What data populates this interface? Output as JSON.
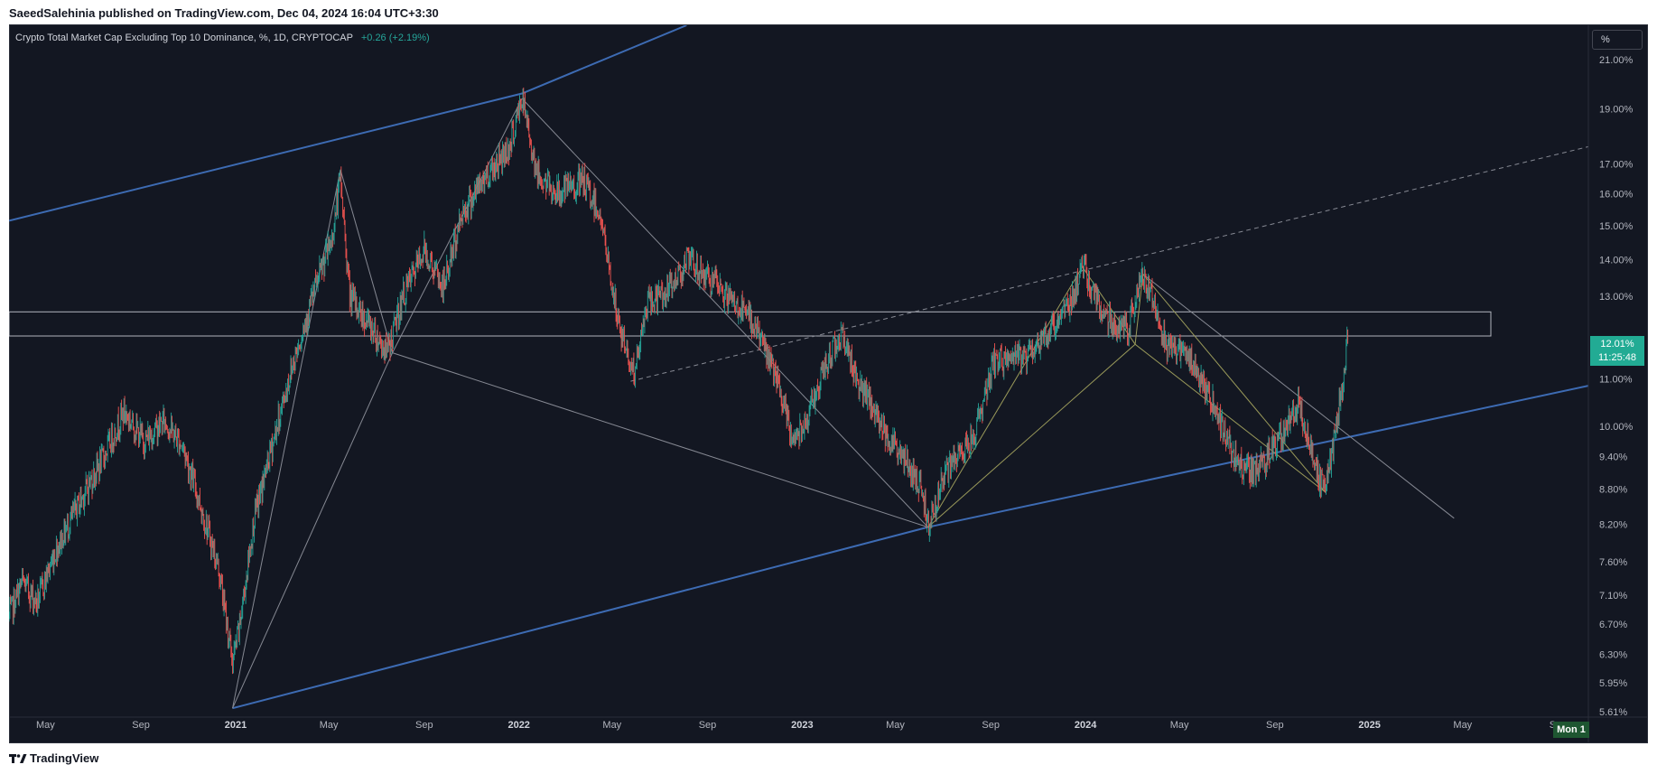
{
  "header": {
    "published": "SaeedSalehinia published on TradingView.com, Dec 04, 2024 16:04 UTC+3:30"
  },
  "legend": {
    "title": "Crypto Total Market Cap Excluding Top 10 Dominance, %, 1D, CRYPTOCAP",
    "change": "+0.26 (+2.19%)"
  },
  "scale_button": "%",
  "price_tag": {
    "value": "12.01%",
    "countdown": "11:25:48"
  },
  "time_tag": "Mon 1",
  "footer": {
    "brand": "TradingView"
  },
  "colors": {
    "background": "#131722",
    "up": "#26a69a",
    "down": "#ef5350",
    "channel": "#3d6bb3",
    "zone": "#b2b5be",
    "pattern": "#9a9a5a",
    "trend": "#868993"
  },
  "chart_data": {
    "type": "candlestick",
    "title": "Crypto Total Market Cap Excluding Top 10 Dominance, %, 1D, CRYPTOCAP",
    "y_scale": "log",
    "ylim": [
      5.55,
      22.5
    ],
    "y_ticks": [
      "21.00%",
      "19.00%",
      "17.00%",
      "16.00%",
      "15.00%",
      "14.00%",
      "13.00%",
      "11.00%",
      "10.00%",
      "9.40%",
      "8.80%",
      "8.20%",
      "7.60%",
      "7.10%",
      "6.70%",
      "6.30%",
      "5.95%",
      "5.61%"
    ],
    "x_ticks": [
      {
        "label": "May",
        "date": "2020-05-01"
      },
      {
        "label": "Sep",
        "date": "2020-09-01"
      },
      {
        "label": "2021",
        "date": "2021-01-01"
      },
      {
        "label": "May",
        "date": "2021-05-01"
      },
      {
        "label": "Sep",
        "date": "2021-09-01"
      },
      {
        "label": "2022",
        "date": "2022-01-01"
      },
      {
        "label": "May",
        "date": "2022-05-01"
      },
      {
        "label": "Sep",
        "date": "2022-09-01"
      },
      {
        "label": "2023",
        "date": "2023-01-01"
      },
      {
        "label": "May",
        "date": "2023-05-01"
      },
      {
        "label": "Sep",
        "date": "2023-09-01"
      },
      {
        "label": "2024",
        "date": "2024-01-01"
      },
      {
        "label": "May",
        "date": "2024-05-01"
      },
      {
        "label": "Sep",
        "date": "2024-09-01"
      },
      {
        "label": "2025",
        "date": "2025-01-01"
      },
      {
        "label": "May",
        "date": "2025-05-01"
      },
      {
        "label": "Sep",
        "date": "2025-09-01"
      }
    ],
    "xlim": [
      "2020-03-15",
      "2025-10-10"
    ],
    "last_price": 12.01,
    "price_path": [
      [
        "2020-03-15",
        6.8
      ],
      [
        "2020-04-01",
        7.3
      ],
      [
        "2020-04-20",
        7.0
      ],
      [
        "2020-05-15",
        7.8
      ],
      [
        "2020-06-15",
        8.6
      ],
      [
        "2020-07-15",
        9.4
      ],
      [
        "2020-08-10",
        10.3
      ],
      [
        "2020-09-05",
        9.7
      ],
      [
        "2020-10-01",
        10.1
      ],
      [
        "2020-10-25",
        9.6
      ],
      [
        "2020-11-15",
        8.6
      ],
      [
        "2020-12-10",
        7.5
      ],
      [
        "2020-12-28",
        6.2
      ],
      [
        "2021-01-05",
        6.6
      ],
      [
        "2021-01-25",
        8.3
      ],
      [
        "2021-02-20",
        9.8
      ],
      [
        "2021-03-15",
        11.3
      ],
      [
        "2021-04-10",
        13.0
      ],
      [
        "2021-05-05",
        14.6
      ],
      [
        "2021-05-16",
        16.5
      ],
      [
        "2021-05-28",
        13.0
      ],
      [
        "2021-06-25",
        12.2
      ],
      [
        "2021-07-15",
        11.6
      ],
      [
        "2021-08-05",
        13.0
      ],
      [
        "2021-09-01",
        14.3
      ],
      [
        "2021-09-25",
        13.2
      ],
      [
        "2021-10-20",
        15.4
      ],
      [
        "2021-11-20",
        16.6
      ],
      [
        "2021-12-20",
        17.6
      ],
      [
        "2022-01-05",
        19.4
      ],
      [
        "2022-01-25",
        16.6
      ],
      [
        "2022-02-20",
        16.0
      ],
      [
        "2022-03-25",
        16.4
      ],
      [
        "2022-04-15",
        15.4
      ],
      [
        "2022-05-10",
        12.2
      ],
      [
        "2022-05-30",
        11.1
      ],
      [
        "2022-06-15",
        12.8
      ],
      [
        "2022-07-15",
        13.2
      ],
      [
        "2022-08-05",
        14.0
      ],
      [
        "2022-09-01",
        13.5
      ],
      [
        "2022-10-01",
        12.9
      ],
      [
        "2022-11-01",
        12.3
      ],
      [
        "2022-11-25",
        11.2
      ],
      [
        "2022-12-20",
        9.7
      ],
      [
        "2023-01-10",
        10.3
      ],
      [
        "2023-02-05",
        11.5
      ],
      [
        "2023-02-20",
        12.1
      ],
      [
        "2023-03-15",
        10.9
      ],
      [
        "2023-04-10",
        10.1
      ],
      [
        "2023-05-10",
        9.4
      ],
      [
        "2023-06-05",
        8.8
      ],
      [
        "2023-06-12",
        8.2
      ],
      [
        "2023-07-05",
        9.1
      ],
      [
        "2023-08-10",
        9.8
      ],
      [
        "2023-09-05",
        11.4
      ],
      [
        "2023-10-15",
        11.5
      ],
      [
        "2023-11-15",
        12.1
      ],
      [
        "2023-12-15",
        13.0
      ],
      [
        "2023-12-28",
        13.8
      ],
      [
        "2024-01-25",
        12.5
      ],
      [
        "2024-02-25",
        12.1
      ],
      [
        "2024-03-12",
        13.6
      ],
      [
        "2024-03-28",
        13.0
      ],
      [
        "2024-04-15",
        11.8
      ],
      [
        "2024-05-10",
        11.6
      ],
      [
        "2024-06-10",
        10.6
      ],
      [
        "2024-07-10",
        9.4
      ],
      [
        "2024-08-05",
        9.1
      ],
      [
        "2024-09-05",
        9.7
      ],
      [
        "2024-10-01",
        10.5
      ],
      [
        "2024-10-25",
        9.1
      ],
      [
        "2024-11-05",
        8.8
      ],
      [
        "2024-11-15",
        9.6
      ],
      [
        "2024-11-28",
        11.0
      ],
      [
        "2024-12-04",
        12.01
      ]
    ],
    "annotations": {
      "horizontal_zone": [
        12.0,
        12.6
      ],
      "upper_channel": [
        [
          "2020-03-15",
          15.15
        ],
        [
          "2022-01-05",
          19.6
        ],
        [
          "2022-08-05",
          22.5
        ]
      ],
      "lower_channel": [
        [
          "2020-12-28",
          5.65
        ],
        [
          "2023-06-12",
          8.15
        ],
        [
          "2025-10-10",
          10.85
        ]
      ],
      "dashed_line": [
        [
          "2022-05-25",
          10.95
        ],
        [
          "2025-10-10",
          17.6
        ]
      ],
      "trend_lines": [
        [
          [
            "2020-12-28",
            5.65
          ],
          [
            "2021-05-16",
            16.8
          ]
        ],
        [
          [
            "2020-12-28",
            5.65
          ],
          [
            "2021-07-22",
            11.6
          ]
        ],
        [
          [
            "2021-05-16",
            16.8
          ],
          [
            "2021-07-22",
            11.6
          ]
        ],
        [
          [
            "2021-07-22",
            11.6
          ],
          [
            "2022-01-05",
            19.4
          ]
        ],
        [
          [
            "2021-07-22",
            11.6
          ],
          [
            "2023-06-12",
            8.15
          ]
        ],
        [
          [
            "2022-01-05",
            19.4
          ],
          [
            "2023-06-12",
            8.15
          ]
        ],
        [
          [
            "2024-03-15",
            13.6
          ],
          [
            "2025-04-20",
            8.3
          ]
        ]
      ],
      "pattern_lines": [
        [
          [
            "2023-06-12",
            8.15
          ],
          [
            "2023-12-28",
            13.8
          ]
        ],
        [
          [
            "2023-06-12",
            8.15
          ],
          [
            "2024-03-05",
            11.8
          ]
        ],
        [
          [
            "2023-12-28",
            13.8
          ],
          [
            "2024-03-05",
            11.8
          ]
        ],
        [
          [
            "2024-03-05",
            11.8
          ],
          [
            "2024-03-15",
            13.6
          ]
        ],
        [
          [
            "2024-03-05",
            11.8
          ],
          [
            "2024-11-05",
            8.75
          ]
        ],
        [
          [
            "2024-03-15",
            13.6
          ],
          [
            "2024-11-05",
            8.75
          ]
        ]
      ]
    }
  }
}
